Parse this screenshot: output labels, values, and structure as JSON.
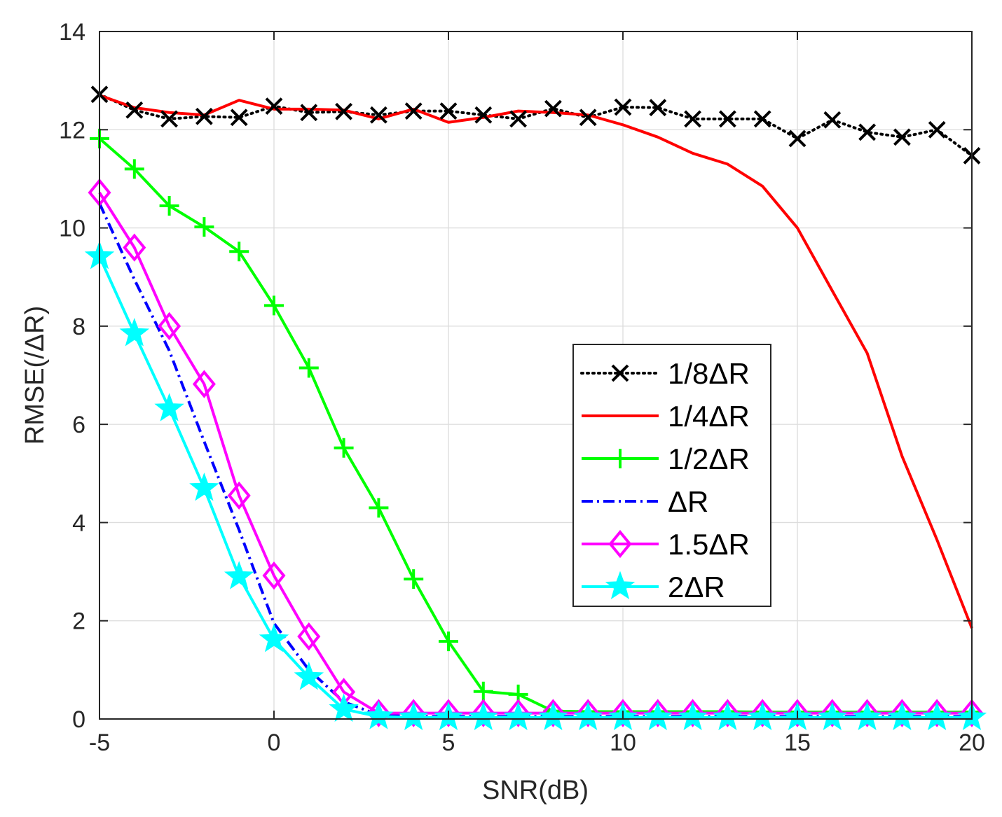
{
  "chart_data": {
    "type": "line",
    "title": "",
    "xlabel": "SNR(dB)",
    "ylabel": "RMSE(/ΔR)",
    "xlim": [
      -5,
      20
    ],
    "ylim": [
      0,
      14
    ],
    "grid": true,
    "legend_position": "center-right",
    "xticks": [
      -5,
      0,
      5,
      10,
      15,
      20
    ],
    "xtick_labels": [
      "-5",
      "0",
      "5",
      "10",
      "15",
      "20"
    ],
    "yticks": [
      0,
      2,
      4,
      6,
      8,
      10,
      12,
      14
    ],
    "ytick_labels": [
      "0",
      "2",
      "4",
      "6",
      "8",
      "10",
      "12",
      "14"
    ],
    "x": [
      -5,
      -4,
      -3,
      -2,
      -1,
      0,
      1,
      2,
      3,
      4,
      5,
      6,
      7,
      8,
      9,
      10,
      11,
      12,
      13,
      14,
      15,
      16,
      17,
      18,
      19,
      20
    ],
    "series": [
      {
        "name": "1/8ΔR",
        "color": "#000000",
        "line": "dotted",
        "marker": "x",
        "values": [
          12.72,
          12.4,
          12.22,
          12.27,
          12.25,
          12.48,
          12.35,
          12.37,
          12.3,
          12.38,
          12.38,
          12.3,
          12.22,
          12.43,
          12.25,
          12.46,
          12.45,
          12.22,
          12.22,
          12.22,
          11.82,
          12.2,
          11.95,
          11.85,
          12.0,
          11.47
        ]
      },
      {
        "name": "1/4ΔR",
        "color": "#ff0000",
        "line": "solid",
        "marker": "none",
        "values": [
          12.7,
          12.45,
          12.35,
          12.3,
          12.6,
          12.42,
          12.42,
          12.4,
          12.22,
          12.42,
          12.15,
          12.25,
          12.38,
          12.35,
          12.3,
          12.1,
          11.85,
          11.52,
          11.3,
          10.85,
          10.0,
          8.72,
          7.45,
          5.35,
          3.65,
          1.85
        ]
      },
      {
        "name": "1/2ΔR",
        "color": "#00ff00",
        "line": "solid",
        "marker": "+",
        "values": [
          11.82,
          11.2,
          10.45,
          10.02,
          9.52,
          8.42,
          7.15,
          5.52,
          4.3,
          2.85,
          1.58,
          0.56,
          0.5,
          0.16,
          0.15,
          0.15,
          0.15,
          0.15,
          0.15,
          0.14,
          0.14,
          0.14,
          0.14,
          0.14,
          0.14,
          0.14
        ]
      },
      {
        "name": "ΔR",
        "color": "#0000ff",
        "line": "dashdot",
        "marker": "none",
        "values": [
          10.5,
          8.95,
          7.5,
          5.65,
          3.85,
          1.95,
          1.0,
          0.35,
          0.08,
          0.05,
          0.05,
          0.05,
          0.05,
          0.05,
          0.05,
          0.05,
          0.05,
          0.05,
          0.05,
          0.05,
          0.05,
          0.05,
          0.05,
          0.05,
          0.05,
          0.05
        ]
      },
      {
        "name": "1.5ΔR",
        "color": "#ff00ff",
        "line": "solid",
        "marker": "diamond",
        "values": [
          10.72,
          9.6,
          8.0,
          6.82,
          4.55,
          2.92,
          1.68,
          0.55,
          0.12,
          0.12,
          0.12,
          0.12,
          0.12,
          0.12,
          0.12,
          0.12,
          0.12,
          0.12,
          0.12,
          0.12,
          0.12,
          0.12,
          0.12,
          0.12,
          0.12,
          0.12
        ]
      },
      {
        "name": "2ΔR",
        "color": "#00ffff",
        "line": "solid",
        "marker": "star",
        "values": [
          9.42,
          7.85,
          6.32,
          4.7,
          2.9,
          1.62,
          0.85,
          0.2,
          0.05,
          0.03,
          0.03,
          0.03,
          0.03,
          0.03,
          0.03,
          0.03,
          0.03,
          0.03,
          0.03,
          0.03,
          0.03,
          0.03,
          0.03,
          0.03,
          0.03,
          0.03
        ]
      }
    ]
  }
}
